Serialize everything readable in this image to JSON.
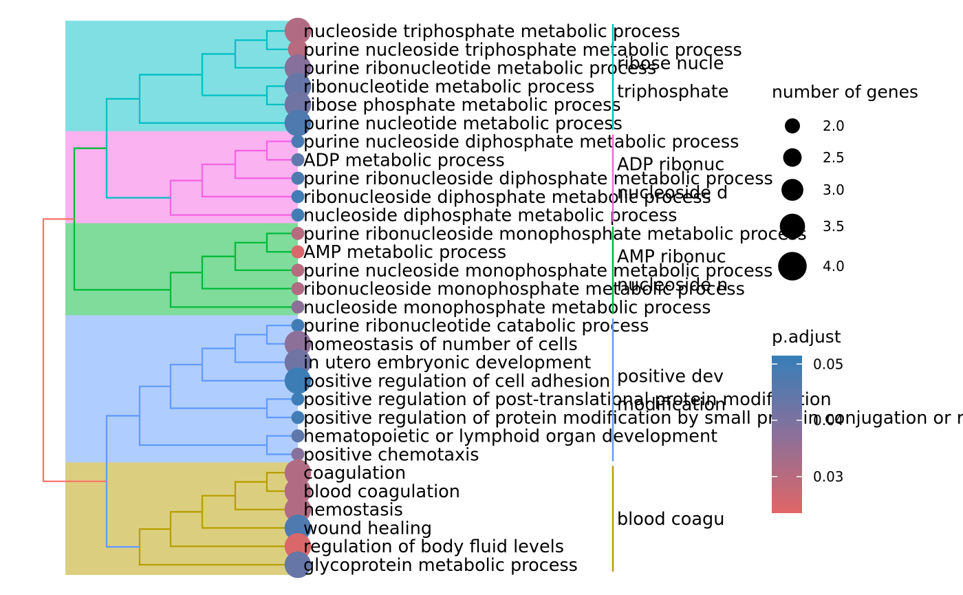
{
  "chart_data": {
    "type": "treeplot",
    "terms": [
      {
        "label": "nucleoside triphosphate metabolic process",
        "count": 4,
        "p_adjust": 0.031,
        "cluster": 0
      },
      {
        "label": "purine nucleoside triphosphate metabolic process",
        "count": 3,
        "p_adjust": 0.03,
        "cluster": 0
      },
      {
        "label": "purine ribonucleotide metabolic process",
        "count": 4,
        "p_adjust": 0.038,
        "cluster": 0
      },
      {
        "label": "ribonucleotide metabolic process",
        "count": 4,
        "p_adjust": 0.044,
        "cluster": 0
      },
      {
        "label": "ribose phosphate metabolic process",
        "count": 4,
        "p_adjust": 0.042,
        "cluster": 0
      },
      {
        "label": "purine nucleotide metabolic process",
        "count": 4,
        "p_adjust": 0.048,
        "cluster": 0
      },
      {
        "label": "purine nucleoside diphosphate metabolic process",
        "count": 2,
        "p_adjust": 0.049,
        "cluster": 1
      },
      {
        "label": "ADP metabolic process",
        "count": 2,
        "p_adjust": 0.045,
        "cluster": 1
      },
      {
        "label": "purine ribonucleoside diphosphate metabolic process",
        "count": 2,
        "p_adjust": 0.048,
        "cluster": 1
      },
      {
        "label": "ribonucleoside diphosphate metabolic process",
        "count": 2,
        "p_adjust": 0.05,
        "cluster": 1
      },
      {
        "label": "nucleoside diphosphate metabolic process",
        "count": 2,
        "p_adjust": 0.05,
        "cluster": 1
      },
      {
        "label": "purine ribonucleoside monophosphate metabolic process",
        "count": 2,
        "p_adjust": 0.03,
        "cluster": 2
      },
      {
        "label": "AMP metabolic process",
        "count": 2,
        "p_adjust": 0.024,
        "cluster": 2
      },
      {
        "label": "purine nucleoside monophosphate metabolic process",
        "count": 2,
        "p_adjust": 0.03,
        "cluster": 2
      },
      {
        "label": "ribonucleoside monophosphate metabolic process",
        "count": 2,
        "p_adjust": 0.031,
        "cluster": 2
      },
      {
        "label": "nucleoside monophosphate metabolic process",
        "count": 2,
        "p_adjust": 0.037,
        "cluster": 2
      },
      {
        "label": "purine ribonucleotide catabolic process",
        "count": 2,
        "p_adjust": 0.05,
        "cluster": 3
      },
      {
        "label": "homeostasis of number of cells",
        "count": 4,
        "p_adjust": 0.037,
        "cluster": 3
      },
      {
        "label": "in utero embryonic development",
        "count": 4,
        "p_adjust": 0.042,
        "cluster": 3
      },
      {
        "label": "positive regulation of cell adhesion",
        "count": 4,
        "p_adjust": 0.051,
        "cluster": 3
      },
      {
        "label": "positive regulation of post-translational protein modification",
        "count": 2,
        "p_adjust": 0.051,
        "cluster": 3
      },
      {
        "label": "positive regulation of protein modification by small protein conjugation or removal",
        "count": 2,
        "p_adjust": 0.05,
        "cluster": 3
      },
      {
        "label": "hematopoietic or lymphoid organ development",
        "count": 2,
        "p_adjust": 0.045,
        "cluster": 3
      },
      {
        "label": "positive chemotaxis",
        "count": 2,
        "p_adjust": 0.038,
        "cluster": 3
      },
      {
        "label": "coagulation",
        "count": 4,
        "p_adjust": 0.031,
        "cluster": 4
      },
      {
        "label": "blood coagulation",
        "count": 4,
        "p_adjust": 0.031,
        "cluster": 4
      },
      {
        "label": "hemostasis",
        "count": 4,
        "p_adjust": 0.031,
        "cluster": 4
      },
      {
        "label": "wound healing",
        "count": 4,
        "p_adjust": 0.048,
        "cluster": 4
      },
      {
        "label": "regulation of body fluid levels",
        "count": 4,
        "p_adjust": 0.024,
        "cluster": 4
      },
      {
        "label": "glycoprotein metabolic process",
        "count": 4,
        "p_adjust": 0.044,
        "cluster": 4
      }
    ],
    "clusters": [
      {
        "label_lines": [
          "ribose nucle",
          "triphosphate"
        ],
        "color": "#00BFC4",
        "band": "#80DFE2"
      },
      {
        "label_lines": [
          "ADP ribonuc",
          "nucleoside d"
        ],
        "color": "#F564E3",
        "band": "#FAB2F1"
      },
      {
        "label_lines": [
          "AMP ribonuc",
          "nucleoside n"
        ],
        "color": "#00BA38",
        "band": "#7FDC9B"
      },
      {
        "label_lines": [
          "positive dev",
          "modification"
        ],
        "color": "#619CFF",
        "band": "#B0CDFF"
      },
      {
        "label_lines": [
          "blood coagu"
        ],
        "color": "#B79F00",
        "band": "#DBCF7F"
      }
    ],
    "root_color": "#F8766D",
    "legend_size": {
      "title": "number of genes",
      "breaks": [
        "2.0",
        "2.5",
        "3.0",
        "3.5",
        "4.0"
      ]
    },
    "legend_color": {
      "title": "p.adjust",
      "breaks": [
        "0.05",
        "0.04",
        "0.03"
      ],
      "low_color": "#E06666",
      "high_color": "#377EB8"
    }
  }
}
